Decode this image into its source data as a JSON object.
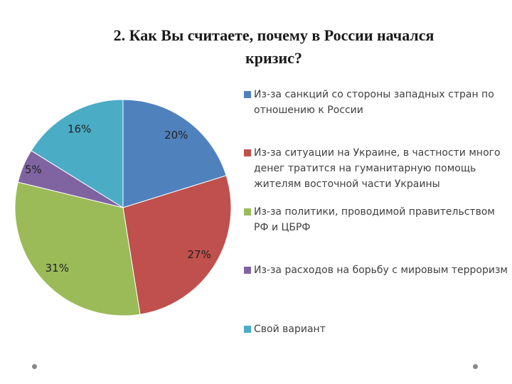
{
  "chart_data": {
    "type": "pie",
    "title": "2. Как Вы считаете, почему в России начался кризис?",
    "categories": [
      "Из-за санкций со стороны западных стран по отношению к России",
      "Из-за ситуации на Украине, в частности много денег тратится на гуманитарную помощь жителям восточной части Украины",
      "Из-за политики, проводимой правительством РФ и ЦБРФ",
      "Из-за расходов на борьбу с мировым терроризм",
      "Свой вариант"
    ],
    "values": [
      20,
      27,
      31,
      5,
      16
    ],
    "value_labels": [
      "20%",
      "27%",
      "31%",
      "5%",
      "16%"
    ],
    "colors": [
      "#4f81bd",
      "#c0504d",
      "#9bbb59",
      "#8064a2",
      "#4bacc6"
    ],
    "legend": "right"
  }
}
